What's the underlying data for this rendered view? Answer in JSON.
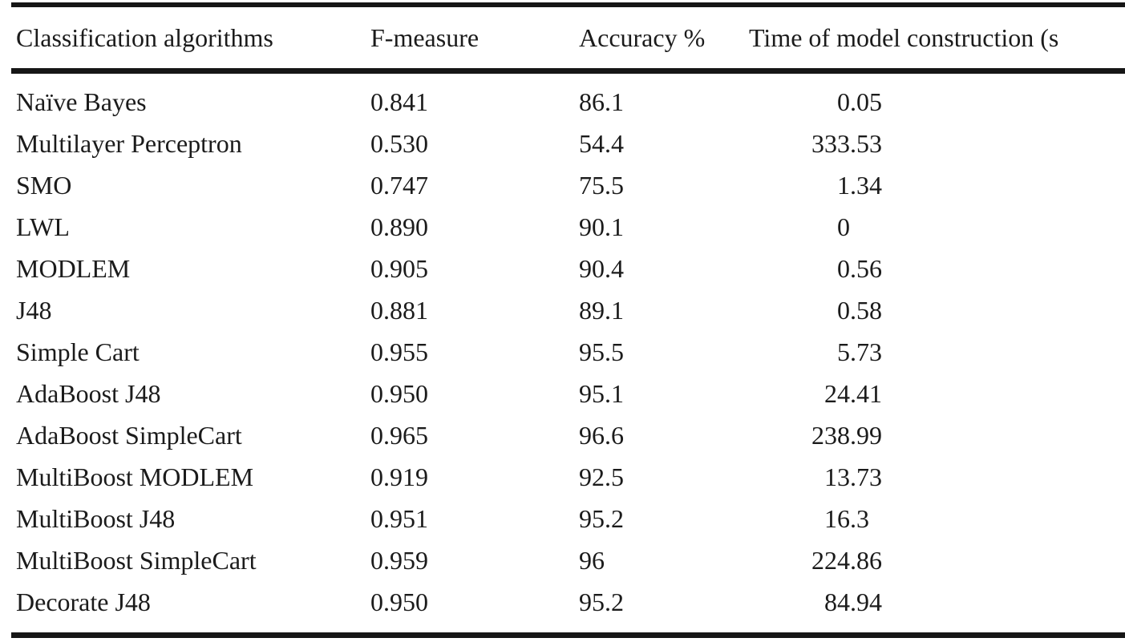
{
  "table": {
    "columns": [
      "Classification algorithms",
      "F-measure",
      "Accuracy %",
      "Time of model construction (s"
    ],
    "rows": [
      {
        "algorithm": "Naïve Bayes",
        "f_measure": "0.841",
        "accuracy": "86.1",
        "time": "0.05"
      },
      {
        "algorithm": "Multilayer Perceptron",
        "f_measure": "0.530",
        "accuracy": "54.4",
        "time": "333.53"
      },
      {
        "algorithm": "SMO",
        "f_measure": "0.747",
        "accuracy": "75.5",
        "time": "1.34"
      },
      {
        "algorithm": "LWL",
        "f_measure": "0.890",
        "accuracy": "90.1",
        "time": "0"
      },
      {
        "algorithm": "MODLEM",
        "f_measure": "0.905",
        "accuracy": "90.4",
        "time": "0.56"
      },
      {
        "algorithm": "J48",
        "f_measure": "0.881",
        "accuracy": "89.1",
        "time": "0.58"
      },
      {
        "algorithm": "Simple Cart",
        "f_measure": "0.955",
        "accuracy": "95.5",
        "time": "5.73"
      },
      {
        "algorithm": "AdaBoost J48",
        "f_measure": "0.950",
        "accuracy": "95.1",
        "time": "24.41"
      },
      {
        "algorithm": "AdaBoost SimpleCart",
        "f_measure": "0.965",
        "accuracy": "96.6",
        "time": "238.99"
      },
      {
        "algorithm": "MultiBoost MODLEM",
        "f_measure": "0.919",
        "accuracy": "92.5",
        "time": "13.73"
      },
      {
        "algorithm": "MultiBoost J48",
        "f_measure": "0.951",
        "accuracy": "95.2",
        "time": "16.3"
      },
      {
        "algorithm": "MultiBoost SimpleCart",
        "f_measure": "0.959",
        "accuracy": "96",
        "time": "224.86"
      },
      {
        "algorithm": "Decorate J48",
        "f_measure": "0.950",
        "accuracy": "95.2",
        "time": "84.94"
      }
    ]
  },
  "chart_data": {
    "type": "table",
    "title": "",
    "columns": [
      "Classification algorithms",
      "F-measure",
      "Accuracy %",
      "Time of model construction (s"
    ],
    "rows": [
      [
        "Naïve Bayes",
        0.841,
        86.1,
        0.05
      ],
      [
        "Multilayer Perceptron",
        0.53,
        54.4,
        333.53
      ],
      [
        "SMO",
        0.747,
        75.5,
        1.34
      ],
      [
        "LWL",
        0.89,
        90.1,
        0
      ],
      [
        "MODLEM",
        0.905,
        90.4,
        0.56
      ],
      [
        "J48",
        0.881,
        89.1,
        0.58
      ],
      [
        "Simple Cart",
        0.955,
        95.5,
        5.73
      ],
      [
        "AdaBoost J48",
        0.95,
        95.1,
        24.41
      ],
      [
        "AdaBoost SimpleCart",
        0.965,
        96.6,
        238.99
      ],
      [
        "MultiBoost MODLEM",
        0.919,
        92.5,
        13.73
      ],
      [
        "MultiBoost J48",
        0.951,
        95.2,
        16.3
      ],
      [
        "MultiBoost SimpleCart",
        0.959,
        96,
        224.86
      ],
      [
        "Decorate J48",
        0.95,
        95.2,
        84.94
      ]
    ]
  },
  "colors": {
    "background": "#ffffff",
    "text": "#1b1b1b",
    "rule": "#161616"
  }
}
